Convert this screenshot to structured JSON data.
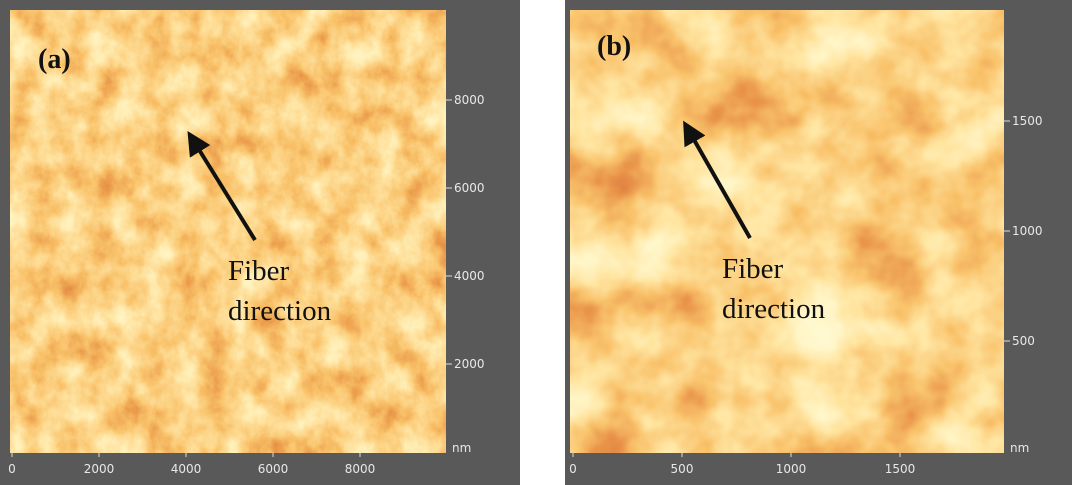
{
  "panels": [
    {
      "label": "(a)",
      "annotation": [
        "Fiber",
        "direction"
      ],
      "x_ticks": [
        0,
        2000,
        4000,
        6000,
        8000
      ],
      "y_ticks": [
        2000,
        4000,
        6000,
        8000
      ],
      "unit": "nm"
    },
    {
      "label": "(b)",
      "annotation": [
        "Fiber",
        "direction"
      ],
      "x_ticks": [
        0,
        500,
        1000,
        1500
      ],
      "y_ticks": [
        500,
        1000,
        1500
      ],
      "unit": "nm"
    }
  ]
}
